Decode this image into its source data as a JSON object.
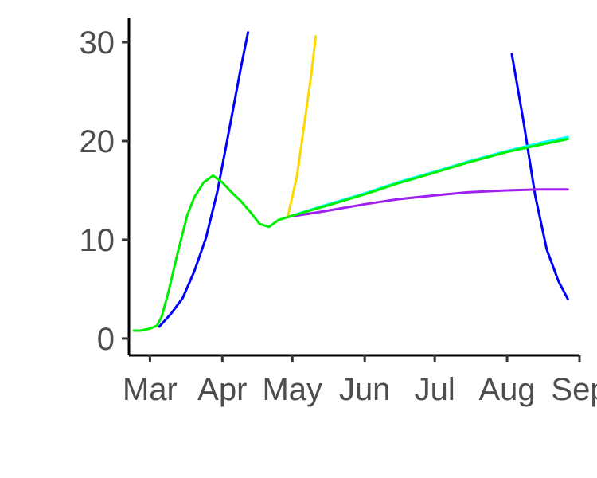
{
  "chart_data": {
    "type": "line",
    "title": "",
    "xlabel": "",
    "ylabel": "",
    "x_axis": {
      "type": "date",
      "range": [
        "2020-02-21",
        "2020-09-01"
      ],
      "ticks": [
        {
          "date": "2020-03-01",
          "label": "Mar"
        },
        {
          "date": "2020-04-01",
          "label": "Apr"
        },
        {
          "date": "2020-05-01",
          "label": "May"
        },
        {
          "date": "2020-06-01",
          "label": "Jun"
        },
        {
          "date": "2020-07-01",
          "label": "Jul"
        },
        {
          "date": "2020-08-01",
          "label": "Aug"
        },
        {
          "date": "2020-09-01",
          "label": "Sep"
        }
      ]
    },
    "y_axis": {
      "range": [
        -1.7,
        32.5
      ],
      "ticks": [
        {
          "value": 0,
          "label": "0"
        },
        {
          "value": 10,
          "label": "10"
        },
        {
          "value": 20,
          "label": "20"
        },
        {
          "value": 30,
          "label": "30"
        }
      ]
    },
    "grid": false,
    "legend": "none",
    "series": [
      {
        "color": "#0000ff",
        "points": [
          [
            "2020-03-05",
            1.2
          ],
          [
            "2020-03-10",
            2.5
          ],
          [
            "2020-03-15",
            4.1
          ],
          [
            "2020-03-20",
            6.8
          ],
          [
            "2020-03-25",
            10.2
          ],
          [
            "2020-03-30",
            15.0
          ],
          [
            "2020-04-04",
            21.2
          ],
          [
            "2020-04-09",
            27.5
          ],
          [
            "2020-04-12",
            31.0
          ]
        ]
      },
      {
        "color": "#0000ff",
        "points": [
          [
            "2020-08-03",
            28.8
          ],
          [
            "2020-08-08",
            22.0
          ],
          [
            "2020-08-13",
            14.5
          ],
          [
            "2020-08-18",
            9.0
          ],
          [
            "2020-08-23",
            5.8
          ],
          [
            "2020-08-27",
            4.0
          ]
        ]
      },
      {
        "color": "#ffd700",
        "points": [
          [
            "2020-04-29",
            12.3
          ],
          [
            "2020-05-03",
            16.5
          ],
          [
            "2020-05-06",
            21.5
          ],
          [
            "2020-05-09",
            26.5
          ],
          [
            "2020-05-11",
            30.6
          ]
        ]
      },
      {
        "color": "#00ffff",
        "points": [
          [
            "2020-04-29",
            12.3
          ],
          [
            "2020-05-15",
            13.5
          ],
          [
            "2020-06-01",
            14.7
          ],
          [
            "2020-06-15",
            15.8
          ],
          [
            "2020-07-01",
            16.9
          ],
          [
            "2020-07-15",
            17.9
          ],
          [
            "2020-08-01",
            19.0
          ],
          [
            "2020-08-15",
            19.8
          ],
          [
            "2020-08-27",
            20.4
          ]
        ]
      },
      {
        "color": "#a020f0",
        "points": [
          [
            "2020-04-29",
            12.3
          ],
          [
            "2020-05-15",
            12.9
          ],
          [
            "2020-06-01",
            13.6
          ],
          [
            "2020-06-15",
            14.1
          ],
          [
            "2020-07-01",
            14.5
          ],
          [
            "2020-07-15",
            14.8
          ],
          [
            "2020-08-01",
            15.0
          ],
          [
            "2020-08-15",
            15.1
          ],
          [
            "2020-08-27",
            15.1
          ]
        ]
      },
      {
        "color": "#00ee00",
        "points": [
          [
            "2020-02-23",
            0.8
          ],
          [
            "2020-02-26",
            0.8
          ],
          [
            "2020-03-01",
            1.0
          ],
          [
            "2020-03-04",
            1.3
          ],
          [
            "2020-03-06",
            2.2
          ],
          [
            "2020-03-09",
            4.8
          ],
          [
            "2020-03-13",
            8.8
          ],
          [
            "2020-03-17",
            12.5
          ],
          [
            "2020-03-20",
            14.3
          ],
          [
            "2020-03-24",
            15.8
          ],
          [
            "2020-03-28",
            16.5
          ],
          [
            "2020-04-01",
            15.8
          ],
          [
            "2020-04-05",
            14.8
          ],
          [
            "2020-04-09",
            13.9
          ],
          [
            "2020-04-13",
            12.8
          ],
          [
            "2020-04-17",
            11.6
          ],
          [
            "2020-04-21",
            11.3
          ],
          [
            "2020-04-25",
            12.0
          ],
          [
            "2020-04-29",
            12.3
          ],
          [
            "2020-05-15",
            13.4
          ],
          [
            "2020-06-01",
            14.6
          ],
          [
            "2020-06-15",
            15.7
          ],
          [
            "2020-07-01",
            16.8
          ],
          [
            "2020-07-15",
            17.8
          ],
          [
            "2020-08-01",
            18.9
          ],
          [
            "2020-08-15",
            19.6
          ],
          [
            "2020-08-27",
            20.2
          ]
        ]
      }
    ]
  }
}
